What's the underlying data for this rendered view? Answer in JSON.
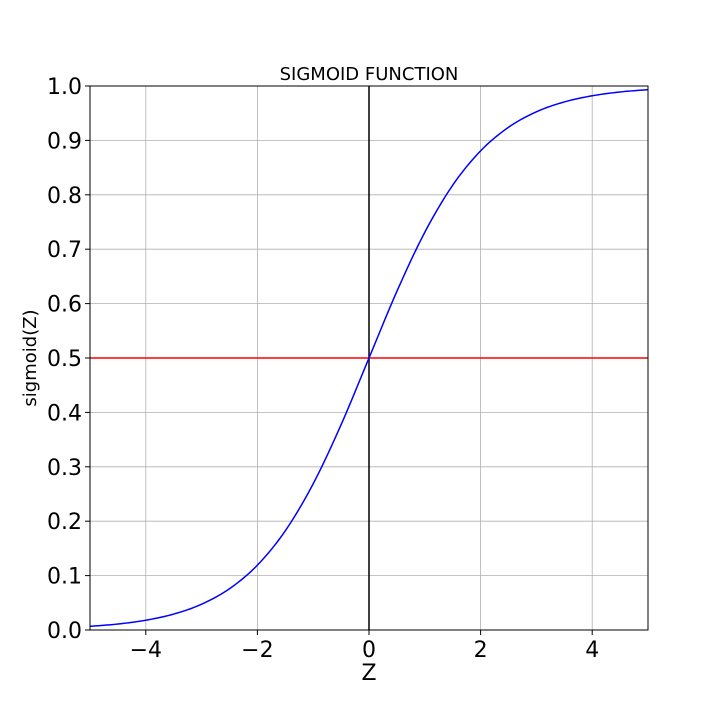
{
  "chart_data": {
    "type": "line",
    "title": "SIGMOID FUNCTION",
    "xlabel": "Z",
    "ylabel": "sigmoid(Z)",
    "xlim": [
      -5,
      5
    ],
    "ylim": [
      0,
      1
    ],
    "grid": true,
    "x_ticks": [
      -4,
      -2,
      0,
      2,
      4
    ],
    "x_tick_labels": [
      "−4",
      "−2",
      "0",
      "2",
      "4"
    ],
    "y_ticks": [
      0,
      0.1,
      0.2,
      0.3,
      0.4,
      0.5,
      0.6,
      0.7,
      0.8,
      0.9,
      1.0
    ],
    "y_tick_labels": [
      "0.0",
      "0.1",
      "0.2",
      "0.3",
      "0.4",
      "0.5",
      "0.6",
      "0.7",
      "0.8",
      "0.9",
      "1.0"
    ],
    "series": [
      {
        "color": "#0000ff",
        "x": [
          -5,
          -4.5,
          -4,
          -3.5,
          -3,
          -2.5,
          -2,
          -1.5,
          -1,
          -0.5,
          0,
          0.5,
          1,
          1.5,
          2,
          2.5,
          3,
          3.5,
          4,
          4.5,
          5
        ],
        "y": [
          0.0067,
          0.011,
          0.018,
          0.0293,
          0.0474,
          0.0759,
          0.1192,
          0.1824,
          0.2689,
          0.3775,
          0.5,
          0.6225,
          0.7311,
          0.8176,
          0.8808,
          0.9241,
          0.9526,
          0.9707,
          0.982,
          0.989,
          0.9933
        ]
      }
    ],
    "reference_lines": [
      {
        "orientation": "horizontal",
        "value": 0.5,
        "color": "#ff0000"
      },
      {
        "orientation": "vertical",
        "value": 0,
        "color": "#000000"
      }
    ]
  }
}
